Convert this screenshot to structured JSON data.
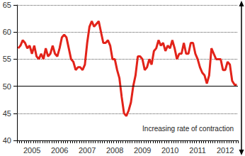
{
  "chart_data": {
    "type": "line",
    "annotation": "Increasing rate of contraction",
    "categories": [
      null,
      null,
      null,
      null,
      null,
      null,
      "2005",
      null,
      null,
      null,
      null,
      null,
      null,
      null,
      null,
      null,
      null,
      null,
      "2006",
      null,
      null,
      null,
      null,
      null,
      null,
      null,
      null,
      null,
      null,
      null,
      "2007",
      null,
      null,
      null,
      null,
      null,
      null,
      null,
      null,
      null,
      null,
      null,
      "2008",
      null,
      null,
      null,
      null,
      null,
      null,
      null,
      null,
      null,
      null,
      null,
      "2009",
      null,
      null,
      null,
      null,
      null,
      null,
      null,
      null,
      null,
      null,
      null,
      "2010",
      null,
      null,
      null,
      null,
      null,
      null,
      null,
      null,
      null,
      null,
      null,
      "2011",
      null,
      null,
      null,
      null,
      null,
      null,
      null,
      null,
      null,
      null,
      null,
      "2012",
      null,
      null,
      null,
      null,
      null
    ],
    "values": [
      57,
      57.5,
      58.5,
      58,
      57,
      57.5,
      56,
      57.5,
      55.5,
      55,
      56,
      55,
      57,
      55.5,
      56,
      57.5,
      56,
      55.5,
      57,
      59,
      59.5,
      59,
      57,
      55,
      54.5,
      53,
      53.5,
      53.5,
      53,
      54,
      58,
      61,
      62,
      61,
      61.5,
      62,
      60,
      58,
      58,
      58.5,
      57.5,
      55,
      55,
      53,
      51.5,
      48,
      45,
      44.5,
      45.5,
      47,
      50,
      52,
      55.5,
      55.5,
      55,
      53,
      53.5,
      55,
      54,
      56.5,
      57,
      58.5,
      57.5,
      58,
      56.5,
      57.5,
      57,
      58.5,
      57,
      55,
      56,
      56,
      58,
      56,
      56,
      58,
      58,
      56,
      55,
      53.5,
      52.5,
      52,
      50.5,
      52,
      57,
      56,
      55,
      55,
      55,
      53,
      53,
      54.5,
      54,
      51,
      50.3,
      50.2
    ],
    "color": "#e2231a",
    "hline": 50,
    "ylim": [
      40,
      65
    ],
    "yticks": [
      40,
      45,
      50,
      55,
      60,
      65
    ],
    "grid": true
  }
}
